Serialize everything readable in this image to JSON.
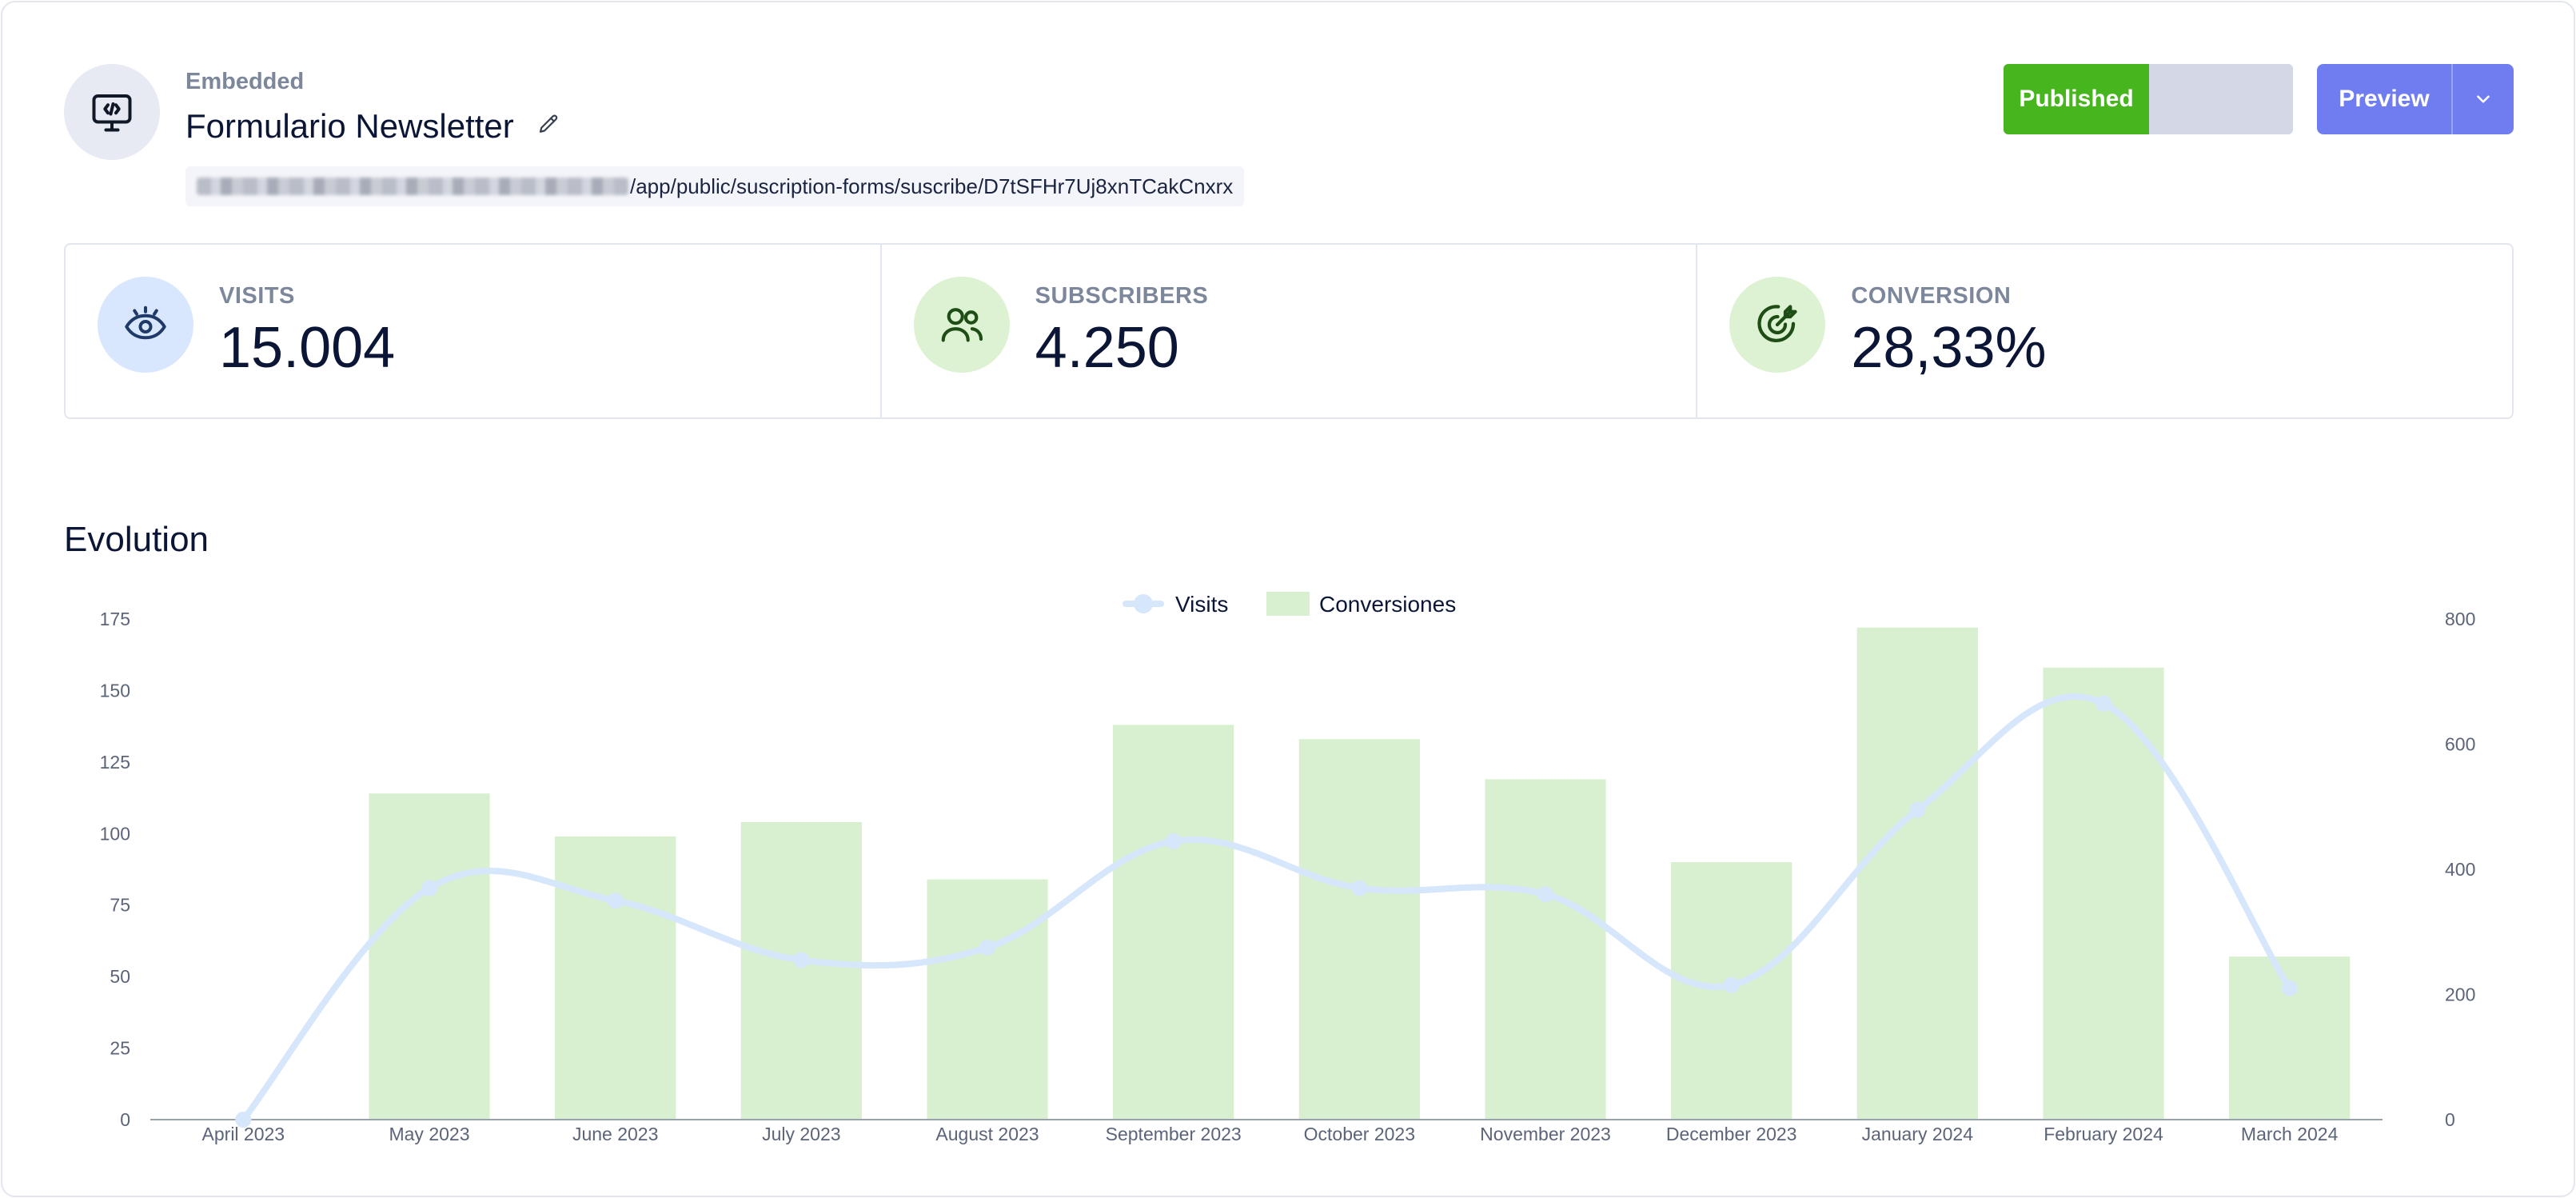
{
  "header": {
    "type_label": "Embedded",
    "title": "Formulario Newsletter",
    "url_path": "/app/public/suscription-forms/suscribe/D7tSFHr7Uj8xnTCakCnxrx",
    "status_label": "Published",
    "preview_label": "Preview"
  },
  "stats": [
    {
      "label": "VISITS",
      "value": "15.004",
      "icon": "eye-icon"
    },
    {
      "label": "SUBSCRIBERS",
      "value": "4.250",
      "icon": "users-icon"
    },
    {
      "label": "CONVERSION",
      "value": "28,33%",
      "icon": "target-icon"
    }
  ],
  "section_title": "Evolution",
  "colors": {
    "published": "#47b51e",
    "preview": "#6f7df1",
    "bars": "#d9f0d0",
    "line": "#d6e6fb"
  },
  "chart_data": {
    "type": "bar",
    "categories": [
      "April 2023",
      "May 2023",
      "June 2023",
      "July 2023",
      "August 2023",
      "September 2023",
      "October 2023",
      "November 2023",
      "December 2023",
      "January 2024",
      "February 2024",
      "March 2024"
    ],
    "series": [
      {
        "name": "Visits",
        "type": "line",
        "axis": "right",
        "values": [
          0,
          370,
          350,
          255,
          275,
          445,
          370,
          360,
          215,
          495,
          665,
          210
        ]
      },
      {
        "name": "Conversiones",
        "type": "bar",
        "axis": "left",
        "values": [
          0,
          114,
          99,
          104,
          84,
          138,
          133,
          119,
          90,
          172,
          158,
          57
        ]
      }
    ],
    "y_left": {
      "ticks": [
        0,
        25,
        50,
        75,
        100,
        125,
        150,
        175
      ],
      "range": [
        0,
        175
      ]
    },
    "y_right": {
      "ticks": [
        0,
        200,
        400,
        600,
        800
      ],
      "range": [
        0,
        800
      ]
    },
    "legend_position": "top-center",
    "grid": false
  }
}
